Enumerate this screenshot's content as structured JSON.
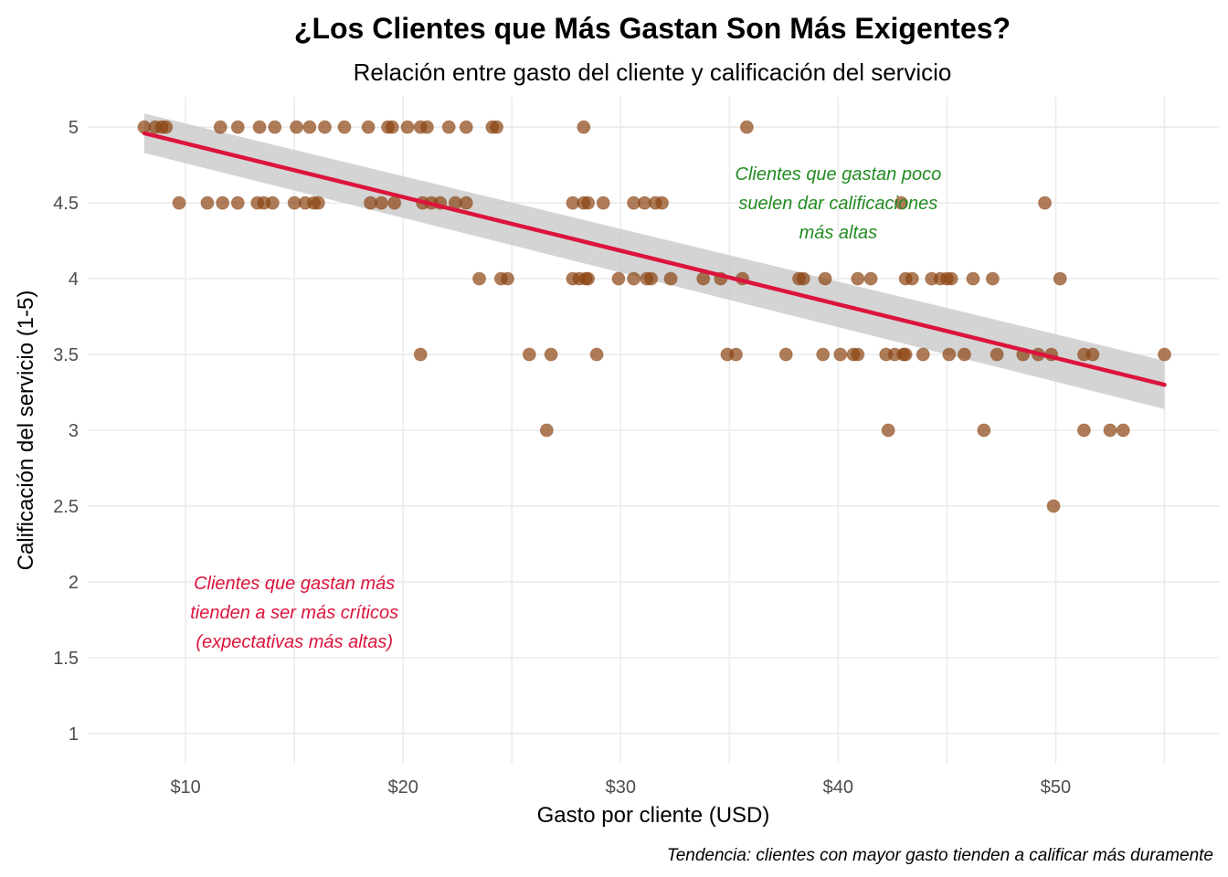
{
  "chart_data": {
    "type": "scatter",
    "title": "¿Los Clientes que Más Gastan Son Más Exigentes?",
    "subtitle": "Relación entre gasto del cliente y calificación del servicio",
    "xlabel": "Gasto por cliente (USD)",
    "ylabel": "Calificación del servicio (1-5)",
    "caption": "Tendencia: clientes con mayor gasto tienden a calificar más duramente",
    "xlim": [
      5.5,
      57.5
    ],
    "ylim": [
      0.8,
      5.2
    ],
    "x_ticks": [
      10,
      20,
      30,
      40,
      50
    ],
    "x_tick_labels": [
      "$10",
      "$20",
      "$30",
      "$40",
      "$50"
    ],
    "y_ticks": [
      1,
      1.5,
      2,
      2.5,
      3,
      3.5,
      4,
      4.5,
      5
    ],
    "y_tick_labels": [
      "1",
      "1.5",
      "2",
      "2.5",
      "3",
      "3.5",
      "4",
      "4.5",
      "5"
    ],
    "grid": true,
    "point_color": "#8B4513",
    "trend": {
      "method": "linear regression with confidence band",
      "color": "#DC143C",
      "band_color": "#cccccc",
      "x": [
        8.1,
        55
      ],
      "y": [
        4.96,
        3.3
      ],
      "band_upper": [
        5.09,
        3.46
      ],
      "band_lower": [
        4.83,
        3.14
      ]
    },
    "points": [
      {
        "x": 8.1,
        "y": 5
      },
      {
        "x": 8.6,
        "y": 5
      },
      {
        "x": 8.9,
        "y": 5
      },
      {
        "x": 9.1,
        "y": 5
      },
      {
        "x": 11.6,
        "y": 5
      },
      {
        "x": 12.4,
        "y": 5
      },
      {
        "x": 13.4,
        "y": 5
      },
      {
        "x": 14.1,
        "y": 5
      },
      {
        "x": 15.1,
        "y": 5
      },
      {
        "x": 15.7,
        "y": 5
      },
      {
        "x": 16.4,
        "y": 5
      },
      {
        "x": 17.3,
        "y": 5
      },
      {
        "x": 18.4,
        "y": 5
      },
      {
        "x": 19.3,
        "y": 5
      },
      {
        "x": 19.5,
        "y": 5
      },
      {
        "x": 20.2,
        "y": 5
      },
      {
        "x": 20.8,
        "y": 5
      },
      {
        "x": 21.1,
        "y": 5
      },
      {
        "x": 22.1,
        "y": 5
      },
      {
        "x": 22.9,
        "y": 5
      },
      {
        "x": 24.1,
        "y": 5
      },
      {
        "x": 24.3,
        "y": 5
      },
      {
        "x": 28.3,
        "y": 5
      },
      {
        "x": 35.8,
        "y": 5
      },
      {
        "x": 9.7,
        "y": 4.5
      },
      {
        "x": 11.0,
        "y": 4.5
      },
      {
        "x": 11.7,
        "y": 4.5
      },
      {
        "x": 12.4,
        "y": 4.5
      },
      {
        "x": 13.3,
        "y": 4.5
      },
      {
        "x": 13.6,
        "y": 4.5
      },
      {
        "x": 14.0,
        "y": 4.5
      },
      {
        "x": 15.0,
        "y": 4.5
      },
      {
        "x": 15.5,
        "y": 4.5
      },
      {
        "x": 15.9,
        "y": 4.5
      },
      {
        "x": 16.1,
        "y": 4.5
      },
      {
        "x": 18.5,
        "y": 4.5
      },
      {
        "x": 19.0,
        "y": 4.5
      },
      {
        "x": 19.6,
        "y": 4.5
      },
      {
        "x": 20.9,
        "y": 4.5
      },
      {
        "x": 21.3,
        "y": 4.5
      },
      {
        "x": 21.7,
        "y": 4.5
      },
      {
        "x": 22.4,
        "y": 4.5
      },
      {
        "x": 22.9,
        "y": 4.5
      },
      {
        "x": 27.8,
        "y": 4.5
      },
      {
        "x": 28.3,
        "y": 4.5
      },
      {
        "x": 28.5,
        "y": 4.5
      },
      {
        "x": 29.2,
        "y": 4.5
      },
      {
        "x": 30.6,
        "y": 4.5
      },
      {
        "x": 31.1,
        "y": 4.5
      },
      {
        "x": 31.6,
        "y": 4.5
      },
      {
        "x": 31.9,
        "y": 4.5
      },
      {
        "x": 42.9,
        "y": 4.5
      },
      {
        "x": 49.5,
        "y": 4.5
      },
      {
        "x": 23.5,
        "y": 4
      },
      {
        "x": 24.5,
        "y": 4
      },
      {
        "x": 24.8,
        "y": 4
      },
      {
        "x": 27.8,
        "y": 4
      },
      {
        "x": 28.1,
        "y": 4
      },
      {
        "x": 28.5,
        "y": 4
      },
      {
        "x": 28.4,
        "y": 4
      },
      {
        "x": 29.9,
        "y": 4
      },
      {
        "x": 30.6,
        "y": 4
      },
      {
        "x": 31.2,
        "y": 4
      },
      {
        "x": 31.4,
        "y": 4
      },
      {
        "x": 32.3,
        "y": 4
      },
      {
        "x": 33.8,
        "y": 4
      },
      {
        "x": 34.6,
        "y": 4
      },
      {
        "x": 35.6,
        "y": 4
      },
      {
        "x": 38.2,
        "y": 4
      },
      {
        "x": 38.4,
        "y": 4
      },
      {
        "x": 39.4,
        "y": 4
      },
      {
        "x": 40.9,
        "y": 4
      },
      {
        "x": 41.5,
        "y": 4
      },
      {
        "x": 43.1,
        "y": 4
      },
      {
        "x": 43.4,
        "y": 4
      },
      {
        "x": 44.3,
        "y": 4
      },
      {
        "x": 44.7,
        "y": 4
      },
      {
        "x": 45.2,
        "y": 4
      },
      {
        "x": 45.0,
        "y": 4
      },
      {
        "x": 46.2,
        "y": 4
      },
      {
        "x": 47.1,
        "y": 4
      },
      {
        "x": 50.2,
        "y": 4
      },
      {
        "x": 20.8,
        "y": 3.5
      },
      {
        "x": 25.8,
        "y": 3.5
      },
      {
        "x": 26.8,
        "y": 3.5
      },
      {
        "x": 28.9,
        "y": 3.5
      },
      {
        "x": 34.9,
        "y": 3.5
      },
      {
        "x": 35.3,
        "y": 3.5
      },
      {
        "x": 37.6,
        "y": 3.5
      },
      {
        "x": 39.3,
        "y": 3.5
      },
      {
        "x": 40.1,
        "y": 3.5
      },
      {
        "x": 40.7,
        "y": 3.5
      },
      {
        "x": 40.9,
        "y": 3.5
      },
      {
        "x": 42.2,
        "y": 3.5
      },
      {
        "x": 42.6,
        "y": 3.5
      },
      {
        "x": 43.0,
        "y": 3.5
      },
      {
        "x": 43.1,
        "y": 3.5
      },
      {
        "x": 43.9,
        "y": 3.5
      },
      {
        "x": 45.1,
        "y": 3.5
      },
      {
        "x": 45.8,
        "y": 3.5
      },
      {
        "x": 47.3,
        "y": 3.5
      },
      {
        "x": 48.5,
        "y": 3.5
      },
      {
        "x": 49.2,
        "y": 3.5
      },
      {
        "x": 49.8,
        "y": 3.5
      },
      {
        "x": 51.3,
        "y": 3.5
      },
      {
        "x": 51.7,
        "y": 3.5
      },
      {
        "x": 55.0,
        "y": 3.5
      },
      {
        "x": 26.6,
        "y": 3
      },
      {
        "x": 42.3,
        "y": 3
      },
      {
        "x": 46.7,
        "y": 3
      },
      {
        "x": 51.3,
        "y": 3
      },
      {
        "x": 52.5,
        "y": 3
      },
      {
        "x": 53.1,
        "y": 3
      },
      {
        "x": 49.9,
        "y": 2.5
      }
    ],
    "annotations": [
      {
        "lines": [
          "Clientes que gastan poco",
          "suelen dar calificaciones",
          "más altas"
        ],
        "x": 40,
        "y": 4.5,
        "color": "#228B22"
      },
      {
        "lines": [
          "Clientes que gastan más",
          "tienden a ser más críticos",
          "(expectativas más altas)"
        ],
        "x": 15,
        "y": 1.8,
        "color": "#DC143C"
      }
    ]
  }
}
